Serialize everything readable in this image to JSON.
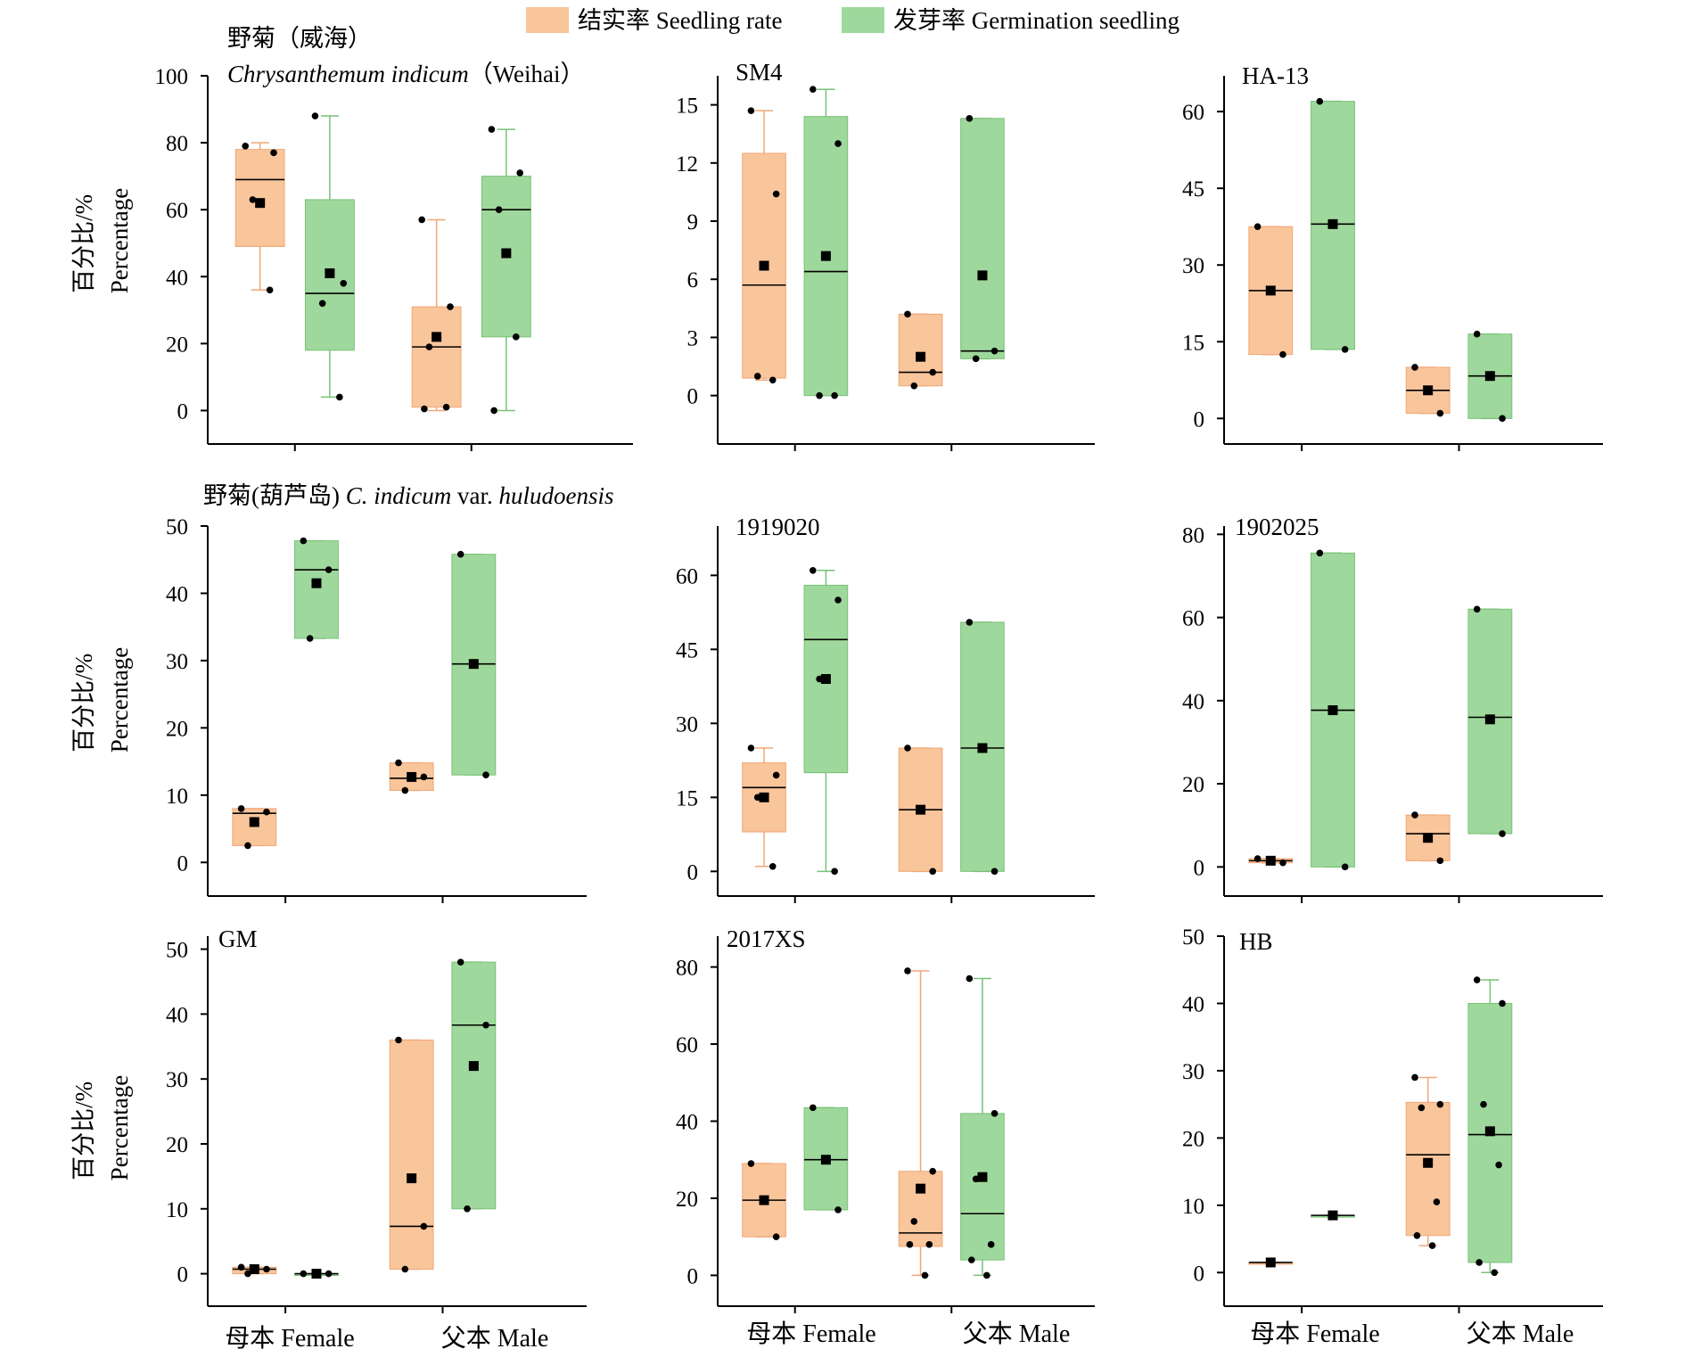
{
  "colors": {
    "seedling": "#f9c59b",
    "seedling_edge": "#f0a777",
    "germination": "#9fd89c",
    "germination_edge": "#79c177",
    "axis": "#000000"
  },
  "legend": {
    "items": [
      {
        "label": "结实率 Seedling rate",
        "color": "#f9c59b"
      },
      {
        "label": "发芽率 Germination seedling",
        "color": "#9fd89c"
      }
    ],
    "placement": "top-center"
  },
  "ylabel": {
    "zh": "百分比/%",
    "en": "Percentage"
  },
  "xcategories": [
    "母本 Female",
    "父本 Male"
  ],
  "chart_data": [
    {
      "type": "box",
      "title": "野菊（威海）",
      "subtitle_italic": "Chrysanthemum indicum",
      "subtitle_rest": "（Weihai）",
      "ylim": [
        -10,
        100
      ],
      "yticks": [
        0,
        20,
        40,
        60,
        80,
        100
      ],
      "categories": [
        "母本 Female",
        "父本 Male"
      ],
      "boxes": [
        {
          "category": "母本 Female",
          "series": "结实率 Seedling rate",
          "min": 36,
          "q1": 49,
          "median": 69,
          "q3": 78,
          "max": 80,
          "mean": 62,
          "points": [
            79,
            77,
            63,
            36
          ]
        },
        {
          "category": "母本 Female",
          "series": "发芽率 Germination seedling",
          "min": 4,
          "q1": 18,
          "median": 35,
          "q3": 63,
          "max": 88,
          "mean": 41,
          "points": [
            88,
            38,
            32,
            4
          ]
        },
        {
          "category": "父本 Male",
          "series": "结实率 Seedling rate",
          "min": 0,
          "q1": 1,
          "median": 19,
          "q3": 31,
          "max": 57,
          "mean": 22,
          "points": [
            57,
            31,
            19,
            1,
            0.5
          ]
        },
        {
          "category": "父本 Male",
          "series": "发芽率 Germination seedling",
          "min": 0,
          "q1": 22,
          "median": 60,
          "q3": 70,
          "max": 84,
          "mean": 47,
          "points": [
            84,
            71,
            60,
            22,
            0
          ]
        }
      ]
    },
    {
      "type": "box",
      "title": "SM4",
      "ylim": [
        -2.5,
        16.5
      ],
      "yticks": [
        0,
        3,
        6,
        9,
        12,
        15
      ],
      "categories": [
        "母本 Female",
        "父本 Male"
      ],
      "boxes": [
        {
          "category": "母本 Female",
          "series": "结实率 Seedling rate",
          "min": 0.8,
          "q1": 0.9,
          "median": 5.7,
          "q3": 12.5,
          "max": 14.7,
          "mean": 6.7,
          "points": [
            14.7,
            10.4,
            1.0,
            0.8
          ]
        },
        {
          "category": "母本 Female",
          "series": "发芽率 Germination seedling",
          "min": 0,
          "q1": 0,
          "median": 6.4,
          "q3": 14.4,
          "max": 15.8,
          "mean": 7.2,
          "points": [
            15.8,
            13.0,
            0,
            0
          ]
        },
        {
          "category": "父本 Male",
          "series": "结实率 Seedling rate",
          "min": 0.5,
          "q1": 0.5,
          "median": 1.2,
          "q3": 4.2,
          "max": 4.2,
          "mean": 2.0,
          "points": [
            4.2,
            1.2,
            0.5
          ]
        },
        {
          "category": "父本 Male",
          "series": "发芽率 Germination seedling",
          "min": 1.9,
          "q1": 1.9,
          "median": 2.3,
          "q3": 14.3,
          "max": 14.3,
          "mean": 6.2,
          "points": [
            14.3,
            2.3,
            1.9
          ]
        }
      ]
    },
    {
      "type": "box",
      "title": "HA-13",
      "ylim": [
        -5,
        67
      ],
      "yticks": [
        0,
        15,
        30,
        45,
        60
      ],
      "categories": [
        "母本 Female",
        "父本 Male"
      ],
      "boxes": [
        {
          "category": "母本 Female",
          "series": "结实率 Seedling rate",
          "min": 12.5,
          "q1": 12.5,
          "median": 25,
          "q3": 37.5,
          "max": 37.5,
          "mean": 25,
          "points": [
            37.5,
            12.5
          ]
        },
        {
          "category": "母本 Female",
          "series": "发芽率 Germination seedling",
          "min": 13.5,
          "q1": 13.5,
          "median": 38,
          "q3": 62,
          "max": 62,
          "mean": 38,
          "points": [
            62,
            13.5
          ]
        },
        {
          "category": "父本 Male",
          "series": "结实率 Seedling rate",
          "min": 1,
          "q1": 1,
          "median": 5.5,
          "q3": 10,
          "max": 10,
          "mean": 5.5,
          "points": [
            10,
            1
          ]
        },
        {
          "category": "父本 Male",
          "series": "发芽率 Germination seedling",
          "min": 0,
          "q1": 0,
          "median": 8.3,
          "q3": 16.5,
          "max": 16.5,
          "mean": 8.3,
          "points": [
            16.5,
            0
          ]
        }
      ]
    },
    {
      "type": "box",
      "title": "野菊(葫芦岛)",
      "subtitle_italic": "C. indicum",
      "subtitle_rest": " var. ",
      "subtitle_italic2": "huludoensis",
      "ylim": [
        -5,
        50
      ],
      "yticks": [
        0,
        10,
        20,
        30,
        40,
        50
      ],
      "categories": [
        "母本 Female",
        "父本 Male"
      ],
      "boxes": [
        {
          "category": "母本 Female",
          "series": "结实率 Seedling rate",
          "min": 2.5,
          "q1": 2.5,
          "median": 7.3,
          "q3": 8,
          "max": 8,
          "mean": 6,
          "points": [
            8,
            7.5,
            2.5
          ]
        },
        {
          "category": "母本 Female",
          "series": "发芽率 Germination seedling",
          "min": 33.3,
          "q1": 33.3,
          "median": 43.5,
          "q3": 47.8,
          "max": 47.8,
          "mean": 41.5,
          "points": [
            47.8,
            43.5,
            33.3
          ]
        },
        {
          "category": "父本 Male",
          "series": "结实率 Seedling rate",
          "min": 10.7,
          "q1": 10.7,
          "median": 12.5,
          "q3": 14.8,
          "max": 14.8,
          "mean": 12.7,
          "points": [
            14.8,
            12.7,
            10.7
          ]
        },
        {
          "category": "父本 Male",
          "series": "发芽率 Germination seedling",
          "min": 13,
          "q1": 13,
          "median": 29.5,
          "q3": 45.8,
          "max": 45.8,
          "mean": 29.5,
          "points": [
            45.8,
            13
          ]
        }
      ]
    },
    {
      "type": "box",
      "title": "1919020",
      "ylim": [
        -5,
        70
      ],
      "yticks": [
        0,
        15,
        30,
        45,
        60
      ],
      "categories": [
        "母本 Female",
        "父本 Male"
      ],
      "boxes": [
        {
          "category": "母本 Female",
          "series": "结实率 Seedling rate",
          "min": 1,
          "q1": 8,
          "median": 17,
          "q3": 22,
          "max": 25,
          "mean": 15,
          "points": [
            25,
            19.5,
            15,
            1
          ]
        },
        {
          "category": "母本 Female",
          "series": "发芽率 Germination seedling",
          "min": 0,
          "q1": 20,
          "median": 47,
          "q3": 58,
          "max": 61,
          "mean": 39,
          "points": [
            61,
            55,
            39,
            0
          ]
        },
        {
          "category": "父本 Male",
          "series": "结实率 Seedling rate",
          "min": 0,
          "q1": 0,
          "median": 12.5,
          "q3": 25,
          "max": 25,
          "mean": 12.5,
          "points": [
            25,
            0
          ]
        },
        {
          "category": "父本 Male",
          "series": "发芽率 Germination seedling",
          "min": 0,
          "q1": 0,
          "median": 25,
          "q3": 50.5,
          "max": 50.5,
          "mean": 25,
          "points": [
            50.5,
            0
          ]
        }
      ]
    },
    {
      "type": "box",
      "title": "1902025",
      "ylim": [
        -7,
        82
      ],
      "yticks": [
        0,
        20,
        40,
        60,
        80
      ],
      "categories": [
        "母本 Female",
        "父本 Male"
      ],
      "boxes": [
        {
          "category": "母本 Female",
          "series": "结实率 Seedling rate",
          "min": 1,
          "q1": 1,
          "median": 1.5,
          "q3": 2,
          "max": 2,
          "mean": 1.5,
          "points": [
            2,
            1
          ]
        },
        {
          "category": "母本 Female",
          "series": "发芽率 Germination seedling",
          "min": 0,
          "q1": 0,
          "median": 37.7,
          "q3": 75.5,
          "max": 75.5,
          "mean": 37.7,
          "points": [
            75.5,
            0
          ]
        },
        {
          "category": "父本 Male",
          "series": "结实率 Seedling rate",
          "min": 1.5,
          "q1": 1.5,
          "median": 8,
          "q3": 12.5,
          "max": 12.5,
          "mean": 7,
          "points": [
            12.5,
            1.5
          ]
        },
        {
          "category": "父本 Male",
          "series": "发芽率 Germination seedling",
          "min": 8,
          "q1": 8,
          "median": 36,
          "q3": 62,
          "max": 62,
          "mean": 35.5,
          "points": [
            62,
            8
          ]
        }
      ]
    },
    {
      "type": "box",
      "title": "GM",
      "ylim": [
        -5,
        52
      ],
      "yticks": [
        0,
        10,
        20,
        30,
        40,
        50
      ],
      "categories": [
        "母本 Female",
        "父本 Male"
      ],
      "boxes": [
        {
          "category": "母本 Female",
          "series": "结实率 Seedling rate",
          "min": 0,
          "q1": 0,
          "median": 0.7,
          "q3": 1,
          "max": 1,
          "mean": 0.7,
          "points": [
            1,
            0.7,
            0
          ]
        },
        {
          "category": "母本 Female",
          "series": "发芽率 Germination seedling",
          "min": 0,
          "q1": 0,
          "median": 0,
          "q3": 0,
          "max": 0,
          "mean": 0,
          "points": [
            0,
            0
          ]
        },
        {
          "category": "父本 Male",
          "series": "结实率 Seedling rate",
          "min": 0.7,
          "q1": 0.7,
          "median": 7.3,
          "q3": 36,
          "max": 36,
          "mean": 14.7,
          "points": [
            36,
            7.3,
            0.7
          ]
        },
        {
          "category": "父本 Male",
          "series": "发芽率 Germination seedling",
          "min": 10,
          "q1": 10,
          "median": 38.3,
          "q3": 48,
          "max": 48,
          "mean": 32,
          "points": [
            48,
            38.3,
            10
          ]
        }
      ]
    },
    {
      "type": "box",
      "title": "2017XS",
      "ylim": [
        -8,
        88
      ],
      "yticks": [
        0,
        20,
        40,
        60,
        80
      ],
      "categories": [
        "母本 Female",
        "父本 Male"
      ],
      "boxes": [
        {
          "category": "母本 Female",
          "series": "结实率 Seedling rate",
          "min": 10,
          "q1": 10,
          "median": 19.5,
          "q3": 29,
          "max": 29,
          "mean": 19.5,
          "points": [
            29,
            10
          ]
        },
        {
          "category": "母本 Female",
          "series": "发芽率 Germination seedling",
          "min": 17,
          "q1": 17,
          "median": 30,
          "q3": 43.5,
          "max": 43.5,
          "mean": 30,
          "points": [
            43.5,
            17
          ]
        },
        {
          "category": "父本 Male",
          "series": "结实率 Seedling rate",
          "min": 0,
          "q1": 7.5,
          "median": 11,
          "q3": 27,
          "max": 79,
          "mean": 22.5,
          "points": [
            79,
            27,
            14,
            8,
            8,
            0
          ]
        },
        {
          "category": "父本 Male",
          "series": "发芽率 Germination seedling",
          "min": 0,
          "q1": 4,
          "median": 16,
          "q3": 42,
          "max": 77,
          "mean": 25.5,
          "points": [
            77,
            42,
            25,
            8,
            4,
            0
          ]
        }
      ]
    },
    {
      "type": "box",
      "title": "HB",
      "ylim": [
        -5,
        50
      ],
      "yticks": [
        0,
        10,
        20,
        30,
        40,
        50
      ],
      "categories": [
        "母本 Female",
        "父本 Male"
      ],
      "boxes": [
        {
          "category": "母本 Female",
          "series": "结实率 Seedling rate",
          "min": 1.5,
          "q1": 1.5,
          "median": 1.5,
          "q3": 1.5,
          "max": 1.5,
          "mean": 1.5,
          "points": []
        },
        {
          "category": "母本 Female",
          "series": "发芽率 Germination seedling",
          "min": 8.5,
          "q1": 8.5,
          "median": 8.5,
          "q3": 8.5,
          "max": 8.5,
          "mean": 8.5,
          "points": []
        },
        {
          "category": "父本 Male",
          "series": "结实率 Seedling rate",
          "min": 4,
          "q1": 5.5,
          "median": 17.5,
          "q3": 25.3,
          "max": 29,
          "mean": 16.3,
          "points": [
            29,
            25,
            24.5,
            10.5,
            5.5,
            4
          ]
        },
        {
          "category": "父本 Male",
          "series": "发芽率 Germination seedling",
          "min": 0,
          "q1": 1.5,
          "median": 20.5,
          "q3": 40,
          "max": 43.5,
          "mean": 21,
          "points": [
            43.5,
            40,
            25,
            16,
            1.5,
            0
          ]
        }
      ]
    }
  ]
}
